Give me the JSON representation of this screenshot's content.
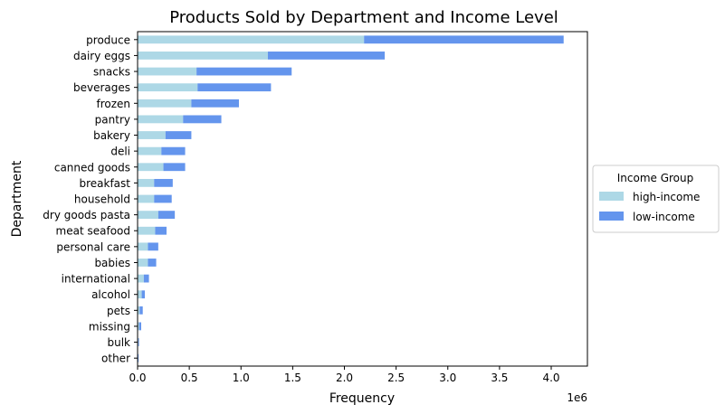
{
  "chart_data": {
    "type": "bar",
    "orientation": "horizontal",
    "stacked": true,
    "title": "Products Sold by Department and Income Level",
    "xlabel": "Frequency",
    "ylabel": "Department",
    "x_multiplier_label": "1e6",
    "xlim": [
      0,
      4.35
    ],
    "x_ticks": [
      "0.0",
      "0.5",
      "1.0",
      "1.5",
      "2.0",
      "2.5",
      "3.0",
      "3.5",
      "4.0"
    ],
    "grid": false,
    "legend": {
      "title": "Income Group",
      "placement": "center-right-outside"
    },
    "categories": [
      "produce",
      "dairy eggs",
      "snacks",
      "beverages",
      "frozen",
      "pantry",
      "bakery",
      "deli",
      "canned goods",
      "breakfast",
      "household",
      "dry goods pasta",
      "meat seafood",
      "personal care",
      "babies",
      "international",
      "alcohol",
      "pets",
      "missing",
      "bulk",
      "other"
    ],
    "series": [
      {
        "name": "high-income",
        "color": "#add8e6",
        "values": [
          2.19,
          1.26,
          0.57,
          0.58,
          0.52,
          0.44,
          0.27,
          0.23,
          0.25,
          0.16,
          0.16,
          0.2,
          0.17,
          0.1,
          0.1,
          0.06,
          0.04,
          0.02,
          0.015,
          0.007,
          0.005
        ]
      },
      {
        "name": "low-income",
        "color": "#6495ed",
        "values": [
          1.93,
          1.13,
          0.92,
          0.71,
          0.46,
          0.37,
          0.25,
          0.23,
          0.21,
          0.18,
          0.17,
          0.16,
          0.11,
          0.1,
          0.08,
          0.05,
          0.03,
          0.03,
          0.02,
          0.007,
          0.005
        ]
      }
    ]
  }
}
